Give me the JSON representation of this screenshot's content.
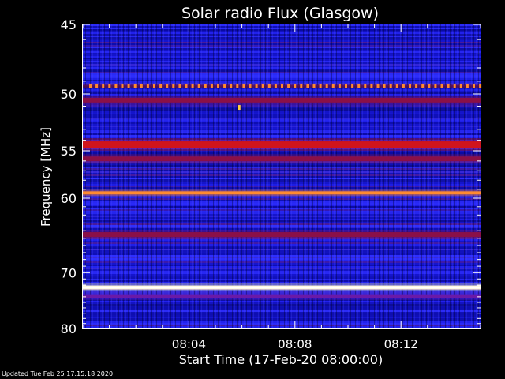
{
  "chart_data": {
    "type": "heatmap",
    "title": "Solar radio Flux (Glasgow)",
    "ylabel": "Frequency [MHz]",
    "xlabel": "Start Time (17-Feb-20 08:00:00)",
    "y_scale": "reciprocal",
    "ylim": [
      45,
      80
    ],
    "xlim_minutes": [
      0,
      15
    ],
    "y_ticks": [
      45,
      50,
      55,
      60,
      70,
      80
    ],
    "x_ticks": [
      {
        "value": 4,
        "label": "08:04"
      },
      {
        "value": 8,
        "label": "08:08"
      },
      {
        "value": 12,
        "label": "08:12"
      }
    ],
    "colorscale": [
      "#000000",
      "#0a0aa8",
      "#2a2af0",
      "#7a1aa0",
      "#c81820",
      "#ff6010",
      "#ffd060",
      "#ffffff"
    ],
    "background_level": "blue",
    "bands": [
      {
        "frequency_mhz": 49.4,
        "level": "orange",
        "pattern": "dotted-periodic"
      },
      {
        "frequency_mhz": 50.5,
        "level": "dark-red"
      },
      {
        "frequency_mhz": 54.4,
        "level": "red"
      },
      {
        "frequency_mhz": 55.8,
        "level": "dark-red"
      },
      {
        "frequency_mhz": 59.4,
        "level": "orange"
      },
      {
        "frequency_mhz": 64.5,
        "level": "dark-red"
      },
      {
        "frequency_mhz": 72.4,
        "level": "white"
      },
      {
        "frequency_mhz": 74.0,
        "level": "purple"
      }
    ],
    "spots": [
      {
        "time_minutes": 5.9,
        "frequency_mhz": 51.1,
        "level": "yellow"
      }
    ]
  },
  "footer": "Updated Tue Feb 25 17:15:18 2020"
}
